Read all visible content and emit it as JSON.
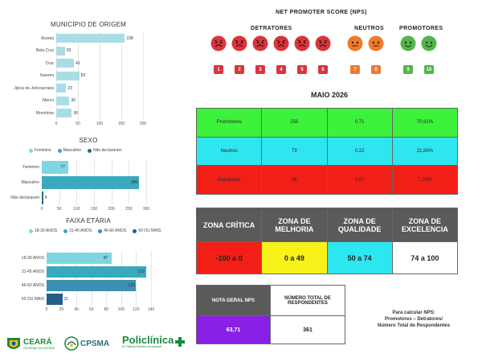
{
  "municipio": {
    "title": "MUNICÍPIO DE ORIGEM",
    "items": [
      {
        "label": "Acaraú",
        "value": 158
      },
      {
        "label": "Bela Cruz",
        "value": 20
      },
      {
        "label": "Cruz",
        "value": 41
      },
      {
        "label": "Itarema",
        "value": 53
      },
      {
        "label": "Jijoca de Jericoacoara",
        "value": 23
      },
      {
        "label": "Marco",
        "value": 30
      },
      {
        "label": "Morrinhos",
        "value": 36
      }
    ],
    "ticks": [
      "0",
      "50",
      "100",
      "150",
      "200"
    ],
    "max": 200,
    "color": "#a9dde6"
  },
  "sexo": {
    "title": "SEXO",
    "legend": [
      {
        "label": "Feminino",
        "color": "#7ed6e0"
      },
      {
        "label": "Masculino",
        "color": "#3aa9bd"
      },
      {
        "label": "Não declararam",
        "color": "#2a6c85"
      }
    ],
    "items": [
      {
        "label": "Feminino",
        "value": 77,
        "color": "#7ed6e0"
      },
      {
        "label": "Masculino",
        "value": 280,
        "color": "#3aa9bd"
      },
      {
        "label": "Não declararam",
        "value": 4,
        "color": "#2a6c85"
      }
    ],
    "ticks": [
      "0",
      "50",
      "100",
      "150",
      "200",
      "250",
      "300"
    ],
    "max": 300
  },
  "faixa": {
    "title": "FAIXA ETÁRIA",
    "legend": [
      {
        "label": "18-30 ANOS",
        "color": "#7ed6e0"
      },
      {
        "label": "31-45 ANOS",
        "color": "#3aa9bd"
      },
      {
        "label": "46-60 ANOS",
        "color": "#3b8fb0"
      },
      {
        "label": "60 OU MAIS",
        "color": "#245d86"
      }
    ],
    "items": [
      {
        "label": "18-30 ANOS",
        "value": 87,
        "color": "#7ed6e0"
      },
      {
        "label": "31-45 ANOS",
        "value": 133,
        "color": "#3aa9bd"
      },
      {
        "label": "46-60 ANOS",
        "value": 120,
        "color": "#3b8fb0"
      },
      {
        "label": "60 OU MAIS",
        "value": 21,
        "color": "#245d86"
      }
    ],
    "ticks": [
      "0",
      "20",
      "40",
      "60",
      "80",
      "100",
      "120",
      "140"
    ],
    "max": 140
  },
  "nps_scale": {
    "title": "NET PROMOTER SCORE (NPS)",
    "groups": {
      "detratores": "DETRATORES",
      "neutros": "NEUTROS",
      "promotores": "PROMOTORES"
    },
    "numbers": [
      "1",
      "2",
      "3",
      "4",
      "5",
      "6",
      "7",
      "8",
      "9",
      "10"
    ],
    "colors": {
      "red": "#d9353c",
      "orange": "#f07a2b",
      "green": "#52b64a"
    }
  },
  "month": "MAIO 2026",
  "summary": {
    "rows": [
      {
        "label": "Promotores",
        "count": "256",
        "ratio": "0,71",
        "pct": "70,91%",
        "color": "#3cf23a"
      },
      {
        "label": "Neutros",
        "count": "79",
        "ratio": "0,22",
        "pct": "21,88%",
        "color": "#2ee6f0"
      },
      {
        "label": "Detratores",
        "count": "26",
        "ratio": "0,07",
        "pct": "7,20%",
        "color": "#f21f16"
      }
    ]
  },
  "zones": {
    "headers": [
      "ZONA CRÍTICA",
      "ZONA DE MELHORIA",
      "ZONA DE QUALIDADE",
      "ZONA DE EXCELENCIA"
    ],
    "ranges": [
      "-100 a 0",
      "0 a 49",
      "50 a 74",
      "74 a 100"
    ],
    "colors": [
      "#f21f16",
      "#f7f21a",
      "#2ee6f0",
      "#ffffff"
    ]
  },
  "nota": {
    "label": "NOTA GERAL NPS",
    "value": "63,71",
    "total_label": "NÚMERO TOTAL DE RESPONDENTES",
    "total_value": "361",
    "color": "#8a1fe6"
  },
  "formula": {
    "line1": "Para calcular NPS:",
    "line2": "Promotores – Detratores/",
    "line3": "Número Total de Respondentes"
  },
  "logos": {
    "ceara": "CEARÁ",
    "ceara_sub": "GOVERNO DO ESTADO",
    "cpsma": "CPSMA",
    "policlinica": "Policlínica",
    "policlinica_sub": "Dr. Plácido Marinho de Andrade"
  }
}
